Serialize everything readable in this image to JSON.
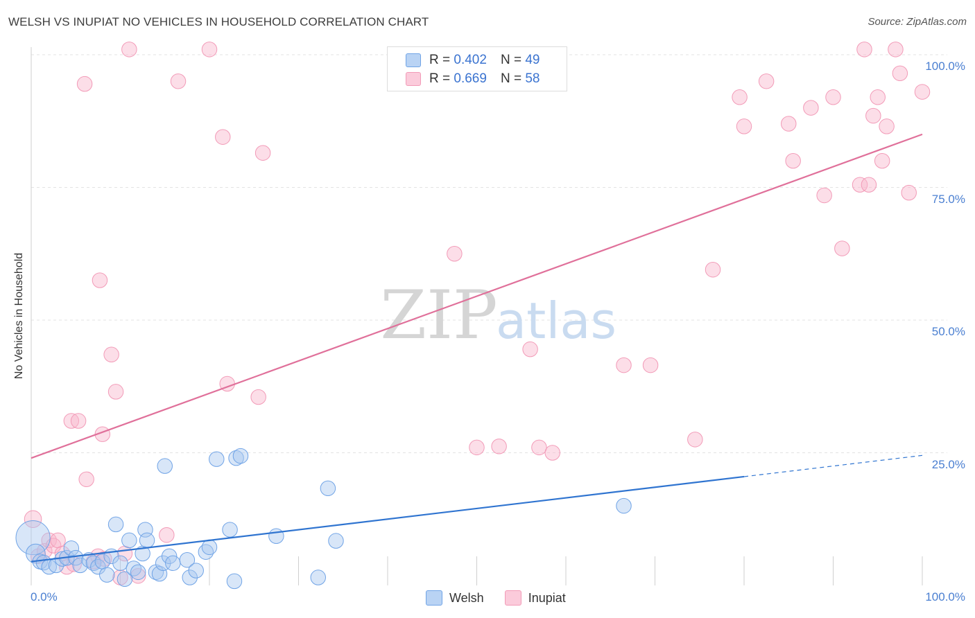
{
  "title": "WELSH VS INUPIAT NO VEHICLES IN HOUSEHOLD CORRELATION CHART",
  "source": "Source: ZipAtlas.com",
  "watermark": {
    "zip": "ZIP",
    "atlas": "atlas"
  },
  "legend": {
    "welsh": {
      "r_label": "R =",
      "r_value": "0.402",
      "n_label": "N =",
      "n_value": "49"
    },
    "inupiat": {
      "r_label": "R =",
      "r_value": "0.669",
      "n_label": "N =",
      "n_value": "58"
    }
  },
  "bottom_legend": {
    "welsh": "Welsh",
    "inupiat": "Inupiat"
  },
  "chart_data": {
    "type": "scatter",
    "title": "WELSH VS INUPIAT NO VEHICLES IN HOUSEHOLD CORRELATION CHART",
    "xlabel": "",
    "ylabel": "No Vehicles in Household",
    "xlim": [
      0,
      100
    ],
    "ylim": [
      0,
      100
    ],
    "x_tick_labels": [
      "0.0%",
      "100.0%"
    ],
    "y_tick_labels": [
      {
        "value": 25,
        "label": "25.0%"
      },
      {
        "value": 50,
        "label": "50.0%"
      },
      {
        "value": 75,
        "label": "75.0%"
      },
      {
        "value": 100,
        "label": "100.0%"
      }
    ],
    "colors": {
      "welsh": "#6fa3e6",
      "welsh_line": "#2f74d0",
      "inupiat": "#f29ab7",
      "inupiat_line": "#e0709a"
    },
    "series": [
      {
        "name": "Welsh",
        "trend": {
          "x0": 0,
          "y0": 4.5,
          "x1": 80,
          "y1": 20.5,
          "dashed_to_x": 100,
          "dashed_to_y": 24.5
        },
        "points": [
          [
            0.2,
            9,
            30
          ],
          [
            0.5,
            6,
            16
          ],
          [
            1.0,
            4.5,
            12
          ],
          [
            1.4,
            4.3,
            12
          ],
          [
            2.0,
            3.5,
            12
          ],
          [
            2.8,
            3.8,
            12
          ],
          [
            3.5,
            5,
            12
          ],
          [
            4.0,
            5.2,
            12
          ],
          [
            4.5,
            7,
            12
          ],
          [
            5.0,
            5.2,
            12
          ],
          [
            5.5,
            3.8,
            12
          ],
          [
            6.5,
            4.8,
            12
          ],
          [
            7.0,
            4.2,
            12
          ],
          [
            7.5,
            3.5,
            12
          ],
          [
            8.0,
            4.5,
            12
          ],
          [
            8.5,
            2,
            12
          ],
          [
            9.0,
            5.5,
            12
          ],
          [
            9.5,
            11.5,
            12
          ],
          [
            10.0,
            4.2,
            12
          ],
          [
            10.5,
            1.2,
            12
          ],
          [
            11.0,
            8.5,
            12
          ],
          [
            11.5,
            3.2,
            12
          ],
          [
            12.0,
            2.5,
            12
          ],
          [
            12.5,
            6,
            12
          ],
          [
            12.8,
            10.5,
            12
          ],
          [
            13.0,
            8.5,
            12
          ],
          [
            14.0,
            2.5,
            12
          ],
          [
            14.4,
            2.2,
            12
          ],
          [
            14.8,
            4.2,
            12
          ],
          [
            15.0,
            22.5,
            12
          ],
          [
            15.5,
            5.5,
            12
          ],
          [
            15.9,
            4.2,
            12
          ],
          [
            17.5,
            4.8,
            12
          ],
          [
            17.8,
            1.5,
            12
          ],
          [
            18.5,
            2.8,
            12
          ],
          [
            19.6,
            6.3,
            12
          ],
          [
            20.0,
            7.2,
            12
          ],
          [
            20.8,
            23.8,
            12
          ],
          [
            22.3,
            10.5,
            12
          ],
          [
            22.8,
            0.8,
            12
          ],
          [
            23.0,
            24.0,
            12
          ],
          [
            23.5,
            24.4,
            12
          ],
          [
            27.5,
            9.3,
            12
          ],
          [
            32.2,
            1.5,
            12
          ],
          [
            33.3,
            18.3,
            12
          ],
          [
            34.2,
            8.4,
            12
          ],
          [
            66.5,
            15.0,
            12
          ]
        ]
      },
      {
        "name": "Inupiat",
        "trend": {
          "x0": 0,
          "y0": 24.0,
          "x1": 100,
          "y1": 85.0
        },
        "points": [
          [
            0.2,
            12.5,
            14
          ],
          [
            0.8,
            5.5,
            12
          ],
          [
            1.5,
            6.5,
            12
          ],
          [
            2.0,
            8.5,
            12
          ],
          [
            2.5,
            7.5,
            12
          ],
          [
            3.0,
            8.5,
            12
          ],
          [
            3.5,
            6.0,
            12
          ],
          [
            4.0,
            3.5,
            12
          ],
          [
            4.5,
            31.0,
            12
          ],
          [
            4.8,
            4.0,
            12
          ],
          [
            5.3,
            31.0,
            12
          ],
          [
            6.0,
            94.5,
            12
          ],
          [
            6.2,
            20.0,
            12
          ],
          [
            7.0,
            4.5,
            12
          ],
          [
            7.5,
            5.5,
            12
          ],
          [
            7.7,
            57.5,
            12
          ],
          [
            8.0,
            28.5,
            12
          ],
          [
            8.2,
            5.0,
            12
          ],
          [
            9.0,
            43.5,
            12
          ],
          [
            9.5,
            36.5,
            12
          ],
          [
            10.0,
            1.5,
            12
          ],
          [
            10.5,
            6.0,
            12
          ],
          [
            11.0,
            101.0,
            12
          ],
          [
            12.0,
            1.8,
            12
          ],
          [
            15.2,
            9.5,
            12
          ],
          [
            16.5,
            95.0,
            12
          ],
          [
            20.0,
            101.0,
            12
          ],
          [
            21.5,
            84.5,
            12
          ],
          [
            22.0,
            38.0,
            12
          ],
          [
            25.5,
            35.5,
            12
          ],
          [
            26.0,
            81.5,
            12
          ],
          [
            47.5,
            62.5,
            12
          ],
          [
            50.0,
            26.0,
            12
          ],
          [
            52.5,
            26.2,
            12
          ],
          [
            56.0,
            44.5,
            12
          ],
          [
            57.0,
            26.0,
            12
          ],
          [
            58.5,
            25.0,
            12
          ],
          [
            66.5,
            41.5,
            12
          ],
          [
            69.5,
            41.5,
            12
          ],
          [
            74.5,
            27.5,
            12
          ],
          [
            76.5,
            59.5,
            12
          ],
          [
            79.5,
            92.0,
            12
          ],
          [
            80.0,
            86.5,
            12
          ],
          [
            82.5,
            95.0,
            12
          ],
          [
            85.0,
            87.0,
            12
          ],
          [
            85.5,
            80.0,
            12
          ],
          [
            87.5,
            90.0,
            12
          ],
          [
            89.0,
            73.5,
            12
          ],
          [
            90.0,
            92.0,
            12
          ],
          [
            91.0,
            63.5,
            12
          ],
          [
            93.0,
            75.5,
            12
          ],
          [
            93.5,
            101.0,
            12
          ],
          [
            94.0,
            75.5,
            12
          ],
          [
            94.5,
            88.5,
            12
          ],
          [
            95.0,
            92.0,
            12
          ],
          [
            95.5,
            80.0,
            12
          ],
          [
            96.0,
            86.5,
            12
          ],
          [
            97.0,
            101.0,
            12
          ],
          [
            97.5,
            96.5,
            12
          ],
          [
            98.5,
            74.0,
            12
          ],
          [
            100.0,
            93.0,
            12
          ]
        ]
      }
    ]
  }
}
